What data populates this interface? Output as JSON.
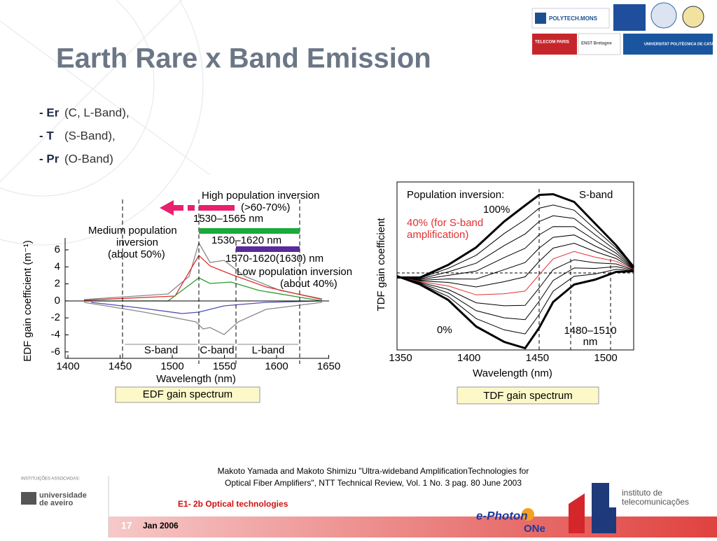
{
  "header": {
    "title": "Earth Rare x Band Emission",
    "logos": [
      "POLYTECH.MONS",
      "ENST Bretagne",
      "TELECOM PARIS",
      "UNIVERSITAT POLITÈCNICA DE CATALUNYA"
    ]
  },
  "bullets": [
    {
      "prefix": "- Er",
      "text": "(C, L-Band),"
    },
    {
      "prefix": "- T",
      "text": "(S-Band),"
    },
    {
      "prefix": "- Pr",
      "text": "(O-Band)"
    }
  ],
  "figures": [
    {
      "annotations": [
        "High population inversion",
        "(>60-70%)",
        "1530–1565 nm",
        "Medium population",
        "inversion",
        "(about 50%)",
        "1530–1620 nm",
        "1570-1620(1630) nm",
        "Low population inversion",
        "(about 40%)"
      ],
      "y_label": "EDF gain coefficient (m⁻¹)",
      "x_label": "Wavelength (nm)",
      "yticks": [
        6,
        4,
        2,
        0,
        -2,
        -4,
        -6
      ],
      "xticks": [
        1400,
        1450,
        1500,
        1550,
        1600,
        1650
      ],
      "bands": [
        "S-band",
        "C-band",
        "L-band"
      ],
      "caption": "EDF gain spectrum"
    },
    {
      "annotations": [
        "Population inversion:",
        "S-band",
        "100%",
        "40% (for S-band",
        "amplification)",
        "0%",
        "1480–1510",
        "nm"
      ],
      "y_label": "TDF gain coefficient",
      "x_label": "Wavelength (nm)",
      "xticks": [
        1350,
        1400,
        1450,
        1500
      ],
      "caption": "TDF gain spectrum"
    }
  ],
  "citation": [
    "Makoto Yamada and Makoto Shimizu \"Ultra-wideband AmplificationTechnologies for",
    "Optical Fiber Amplifiers\", NTT Technical Review, Vol. 1 No. 3  pag. 80 June 2003"
  ],
  "footer": {
    "course": "E1- 2b Optical technologies",
    "page": "17",
    "date": "Jan 2006",
    "associated": "INSTITUIÇÕES ASSOCIADAS:",
    "aveiro": [
      "universidade",
      "de aveiro"
    ],
    "institute": [
      "instituto de",
      "telecomunicações"
    ],
    "project": [
      "e-Photon",
      "ONe"
    ]
  }
}
